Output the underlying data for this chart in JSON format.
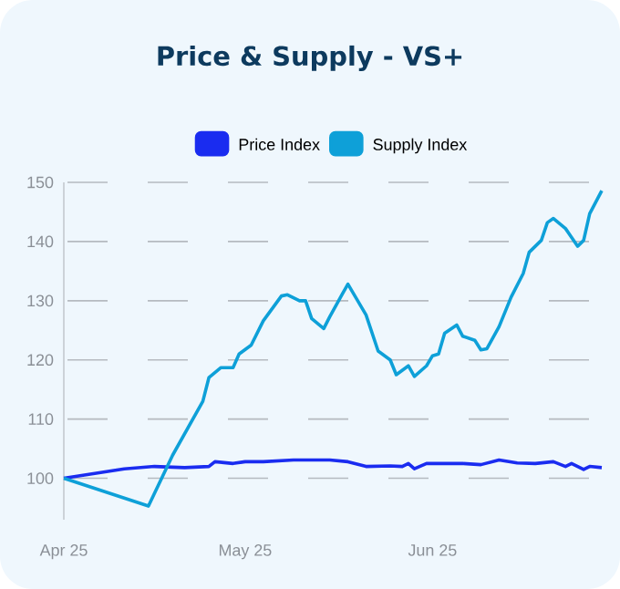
{
  "chart_data": {
    "type": "line",
    "title": "Price & Supply - VS+",
    "x": [
      "2025-04-01",
      "2025-04-11",
      "2025-04-16",
      "2025-04-21",
      "2025-04-25",
      "2025-04-26",
      "2025-04-29",
      "2025-05-01",
      "2025-05-04",
      "2025-05-09",
      "2025-05-15",
      "2025-05-18",
      "2025-05-21",
      "2025-05-25",
      "2025-05-27",
      "2025-05-28",
      "2025-05-29",
      "2025-05-31",
      "2025-06-06",
      "2025-06-09",
      "2025-06-12",
      "2025-06-15",
      "2025-06-18",
      "2025-06-21",
      "2025-06-23",
      "2025-06-24",
      "2025-06-26",
      "2025-06-27",
      "2025-06-29"
    ],
    "series": [
      {
        "name": "Price Index",
        "color": "#1a2cf0",
        "values": [
          100,
          101.6,
          102,
          101.8,
          102,
          102.8,
          102.5,
          102.8,
          102.8,
          103.1,
          103.1,
          102.8,
          102,
          102.1,
          102,
          102.5,
          101.6,
          102.5,
          102.5,
          102.3,
          103.1,
          102.6,
          102.5,
          102.8,
          102,
          102.5,
          101.5,
          102,
          101.8
        ]
      },
      {
        "name": "Supply Index",
        "color": "#0ea0d8",
        "x": [
          "2025-04-01",
          "2025-04-15",
          "2025-04-19",
          "2025-04-24",
          "2025-04-25",
          "2025-04-27",
          "2025-04-29",
          "2025-04-30",
          "2025-05-02",
          "2025-05-04",
          "2025-05-07",
          "2025-05-08",
          "2025-05-10",
          "2025-05-11",
          "2025-05-12",
          "2025-05-14",
          "2025-05-15",
          "2025-05-17",
          "2025-05-18",
          "2025-05-21",
          "2025-05-23",
          "2025-05-25",
          "2025-05-26",
          "2025-05-28",
          "2025-05-29",
          "2025-05-31",
          "2025-06-01",
          "2025-06-02",
          "2025-06-03",
          "2025-06-05",
          "2025-06-06",
          "2025-06-08",
          "2025-06-09",
          "2025-06-10",
          "2025-06-12",
          "2025-06-14",
          "2025-06-16",
          "2025-06-17",
          "2025-06-19",
          "2025-06-20",
          "2025-06-21",
          "2025-06-23",
          "2025-06-25",
          "2025-06-26",
          "2025-06-27",
          "2025-06-29"
        ],
        "values": [
          100,
          95.3,
          103.9,
          113,
          117,
          118.7,
          118.7,
          121,
          122.5,
          126.6,
          130.8,
          131,
          130,
          130,
          127,
          125.3,
          127.3,
          131,
          132.8,
          127.6,
          121.5,
          120,
          117.5,
          119,
          117.2,
          119,
          120.7,
          121,
          124.5,
          125.9,
          124,
          123.3,
          121.7,
          121.9,
          125.6,
          130.6,
          134.6,
          138.2,
          140.2,
          143.2,
          143.9,
          142.2,
          139.2,
          140.2,
          144.7,
          148.6
        ]
      }
    ],
    "xlim": [
      "2025-04-01",
      "2025-06-29"
    ],
    "ylim": [
      93,
      150
    ],
    "xticks": [
      {
        "value": "2025-04-01",
        "label": "Apr 25"
      },
      {
        "value": "2025-05-01",
        "label": "May 25"
      },
      {
        "value": "2025-06-01",
        "label": "Jun 25"
      }
    ],
    "yticks": [
      100,
      110,
      120,
      130,
      140,
      150
    ],
    "grid": "y",
    "legend": "top"
  }
}
